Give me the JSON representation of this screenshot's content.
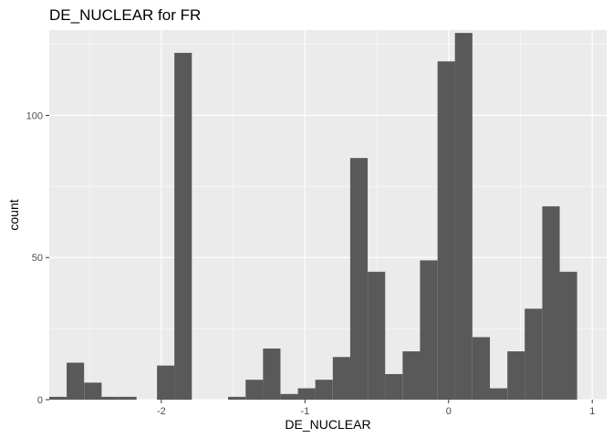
{
  "chart_data": {
    "type": "bar",
    "subtype": "histogram",
    "title": "DE_NUCLEAR  for FR",
    "xlabel": "DE_NUCLEAR",
    "ylabel": "count",
    "xlim": [
      -2.78,
      1.1
    ],
    "ylim": [
      0,
      130
    ],
    "x_ticks": [
      {
        "value": -2,
        "label": "-2"
      },
      {
        "value": -1,
        "label": "-1"
      },
      {
        "value": 0,
        "label": "0"
      },
      {
        "value": 1,
        "label": "1"
      }
    ],
    "y_ticks": [
      {
        "value": 0,
        "label": "0"
      },
      {
        "value": 50,
        "label": "50"
      },
      {
        "value": 100,
        "label": "100"
      }
    ],
    "grid": true,
    "bin_width": 0.1215,
    "bins": [
      {
        "x0": -2.78,
        "count": 1
      },
      {
        "x0": -2.659,
        "count": 13
      },
      {
        "x0": -2.537,
        "count": 6
      },
      {
        "x0": -2.416,
        "count": 1
      },
      {
        "x0": -2.294,
        "count": 1
      },
      {
        "x0": -2.03,
        "count": 12
      },
      {
        "x0": -1.909,
        "count": 122
      },
      {
        "x0": -1.535,
        "count": 1
      },
      {
        "x0": -1.413,
        "count": 7
      },
      {
        "x0": -1.292,
        "count": 18
      },
      {
        "x0": -1.17,
        "count": 2
      },
      {
        "x0": -1.049,
        "count": 4
      },
      {
        "x0": -0.928,
        "count": 7
      },
      {
        "x0": -0.806,
        "count": 15
      },
      {
        "x0": -0.685,
        "count": 85
      },
      {
        "x0": -0.563,
        "count": 45
      },
      {
        "x0": -0.442,
        "count": 9
      },
      {
        "x0": -0.32,
        "count": 17
      },
      {
        "x0": -0.199,
        "count": 49
      },
      {
        "x0": -0.077,
        "count": 119
      },
      {
        "x0": 0.044,
        "count": 129
      },
      {
        "x0": 0.166,
        "count": 22
      },
      {
        "x0": 0.287,
        "count": 4
      },
      {
        "x0": 0.409,
        "count": 17
      },
      {
        "x0": 0.53,
        "count": 32
      },
      {
        "x0": 0.652,
        "count": 68
      },
      {
        "x0": 0.773,
        "count": 45
      }
    ],
    "colors": {
      "panel": "#ebebeb",
      "grid_major": "#ffffff",
      "bar": "#595959",
      "tick": "#333333"
    }
  }
}
